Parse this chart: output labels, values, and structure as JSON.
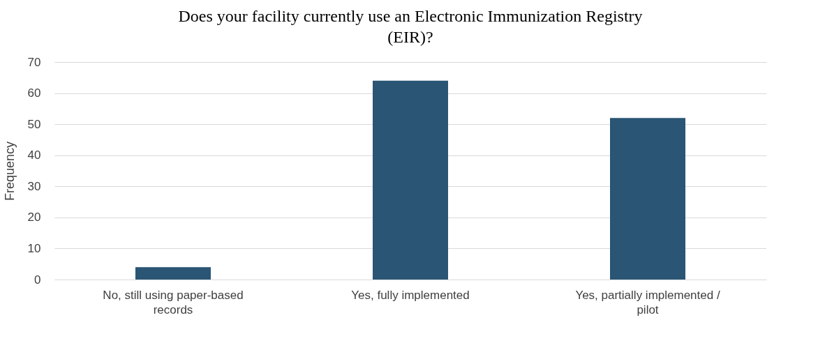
{
  "chart_data": {
    "type": "bar",
    "title": "Does your facility currently use an Electronic Immunization Registry (EIR)?",
    "ylabel": "Frequency",
    "categories": [
      "No, still using paper-based records",
      "Yes, fully implemented",
      "Yes, partially implemented / pilot"
    ],
    "values": [
      4,
      64,
      52
    ],
    "color": "#2a5574",
    "ylim": [
      0,
      70
    ],
    "yticks": [
      0,
      10,
      20,
      30,
      40,
      50,
      60,
      70
    ],
    "grid": "y"
  }
}
